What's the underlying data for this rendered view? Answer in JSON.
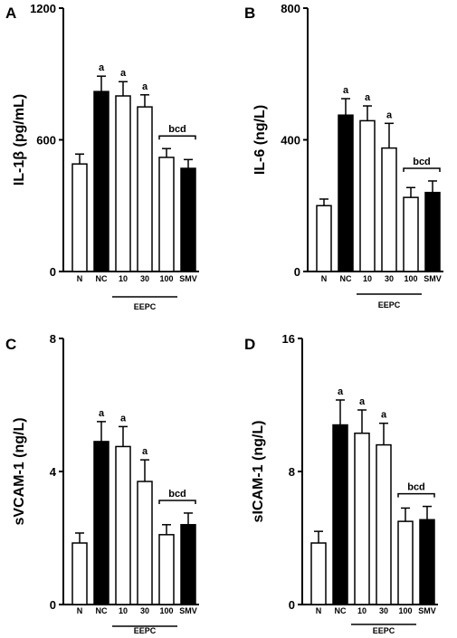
{
  "chart_data": [
    {
      "panel": "A",
      "type": "bar",
      "ylabel": "IL-1β (pg/mL)",
      "ylim": [
        0,
        1200
      ],
      "yticks": [
        "0",
        "600",
        "1200"
      ],
      "categories": [
        "N",
        "NC",
        "10",
        "30",
        "100",
        "SMV"
      ],
      "values": [
        490,
        820,
        800,
        750,
        520,
        470
      ],
      "errors": [
        45,
        70,
        65,
        55,
        40,
        40
      ],
      "fills": [
        "#ffffff",
        "#000000",
        "#ffffff",
        "#ffffff",
        "#ffffff",
        "#000000"
      ],
      "annotations": [
        "",
        "a",
        "a",
        "a",
        "",
        ""
      ],
      "bracket_label": "bcd",
      "group_label": "EEPC"
    },
    {
      "panel": "B",
      "type": "bar",
      "ylabel": "IL-6 (ng/L)",
      "ylim": [
        0,
        800
      ],
      "yticks": [
        "0",
        "400",
        "800"
      ],
      "categories": [
        "N",
        "NC",
        "10",
        "30",
        "100",
        "SMV"
      ],
      "values": [
        200,
        475,
        458,
        375,
        225,
        240
      ],
      "errors": [
        20,
        50,
        45,
        75,
        30,
        35
      ],
      "fills": [
        "#ffffff",
        "#000000",
        "#ffffff",
        "#ffffff",
        "#ffffff",
        "#000000"
      ],
      "annotations": [
        "",
        "a",
        "a",
        "a",
        "",
        ""
      ],
      "bracket_label": "bcd",
      "group_label": "EEPC"
    },
    {
      "panel": "C",
      "type": "bar",
      "ylabel": "sVCAM-1 (ng/L)",
      "ylim": [
        0,
        8
      ],
      "yticks": [
        "0",
        "4",
        "8"
      ],
      "categories": [
        "N",
        "NC",
        "10",
        "30",
        "100",
        "SMV"
      ],
      "values": [
        1.85,
        4.9,
        4.75,
        3.7,
        2.1,
        2.4
      ],
      "errors": [
        0.3,
        0.6,
        0.6,
        0.65,
        0.3,
        0.35
      ],
      "fills": [
        "#ffffff",
        "#000000",
        "#ffffff",
        "#ffffff",
        "#ffffff",
        "#000000"
      ],
      "annotations": [
        "",
        "a",
        "a",
        "a",
        "",
        ""
      ],
      "bracket_label": "bcd",
      "group_label": "EEPC"
    },
    {
      "panel": "D",
      "type": "bar",
      "ylabel": "sICAM-1 (ng/L)",
      "ylim": [
        0,
        16
      ],
      "yticks": [
        "0",
        "8",
        "16"
      ],
      "categories": [
        "N",
        "NC",
        "10",
        "30",
        "100",
        "SMV"
      ],
      "values": [
        3.7,
        10.8,
        10.3,
        9.6,
        5.0,
        5.1
      ],
      "errors": [
        0.7,
        1.5,
        1.4,
        1.3,
        0.8,
        0.8
      ],
      "fills": [
        "#ffffff",
        "#000000",
        "#ffffff",
        "#ffffff",
        "#ffffff",
        "#000000"
      ],
      "annotations": [
        "",
        "a",
        "a",
        "a",
        "",
        ""
      ],
      "bracket_label": "bcd",
      "group_label": "EEPC"
    }
  ]
}
